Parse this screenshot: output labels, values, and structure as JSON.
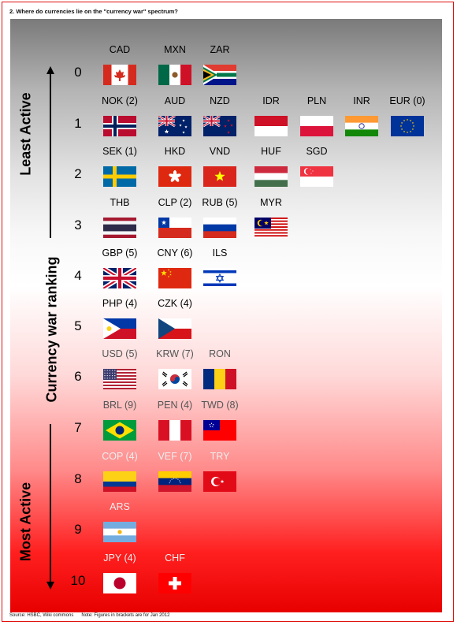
{
  "header": {
    "title": "2. Where do currencies lie on the \"currency war\" spectrum?"
  },
  "footer": {
    "source": "Source: HSBC, Wiki commons",
    "note": "Note: Figures in brackets are for Jan 2012"
  },
  "axis": {
    "label_top": "Least Active",
    "label_middle": "Currency war ranking",
    "label_bottom": "Most Active"
  },
  "rankings": [
    {
      "rank": "0",
      "currencies": [
        {
          "code": "CAD",
          "flag": "canada-flag"
        },
        {
          "code": "MXN",
          "flag": "mexico-flag"
        },
        {
          "code": "ZAR",
          "flag": "south-africa-flag"
        }
      ]
    },
    {
      "rank": "1",
      "currencies": [
        {
          "code": "NOK (2)",
          "flag": "norway-flag"
        },
        {
          "code": "AUD",
          "flag": "australia-flag"
        },
        {
          "code": "NZD",
          "flag": "new-zealand-flag"
        },
        {
          "code": "IDR",
          "flag": "indonesia-flag"
        },
        {
          "code": "PLN",
          "flag": "poland-flag"
        },
        {
          "code": "INR",
          "flag": "india-flag"
        },
        {
          "code": "EUR (0)",
          "flag": "eu-flag"
        }
      ]
    },
    {
      "rank": "2",
      "currencies": [
        {
          "code": "SEK (1)",
          "flag": "sweden-flag"
        },
        {
          "code": "HKD",
          "flag": "hong-kong-flag"
        },
        {
          "code": "VND",
          "flag": "vietnam-flag"
        },
        {
          "code": "HUF",
          "flag": "hungary-flag"
        },
        {
          "code": "SGD",
          "flag": "singapore-flag"
        }
      ]
    },
    {
      "rank": "3",
      "currencies": [
        {
          "code": "THB",
          "flag": "thailand-flag"
        },
        {
          "code": "CLP (2)",
          "flag": "chile-flag"
        },
        {
          "code": "RUB (5)",
          "flag": "russia-flag"
        },
        {
          "code": "MYR",
          "flag": "malaysia-flag"
        }
      ]
    },
    {
      "rank": "4",
      "currencies": [
        {
          "code": "GBP (5)",
          "flag": "uk-flag"
        },
        {
          "code": "CNY (6)",
          "flag": "china-flag"
        },
        {
          "code": "ILS",
          "flag": "israel-flag"
        }
      ]
    },
    {
      "rank": "5",
      "currencies": [
        {
          "code": "PHP (4)",
          "flag": "philippines-flag"
        },
        {
          "code": "CZK (4)",
          "flag": "czech-flag"
        }
      ]
    },
    {
      "rank": "6",
      "currencies": [
        {
          "code": "USD (5)",
          "flag": "usa-flag"
        },
        {
          "code": "KRW (7)",
          "flag": "south-korea-flag"
        },
        {
          "code": "RON",
          "flag": "romania-flag"
        }
      ]
    },
    {
      "rank": "7",
      "currencies": [
        {
          "code": "BRL (9)",
          "flag": "brazil-flag"
        },
        {
          "code": "PEN (4)",
          "flag": "peru-flag"
        },
        {
          "code": "TWD (8)",
          "flag": "taiwan-flag"
        }
      ]
    },
    {
      "rank": "8",
      "currencies": [
        {
          "code": "COP (4)",
          "flag": "colombia-flag"
        },
        {
          "code": "VEF (7)",
          "flag": "venezuela-flag"
        },
        {
          "code": "TRY",
          "flag": "turkey-flag"
        }
      ]
    },
    {
      "rank": "9",
      "currencies": [
        {
          "code": "ARS",
          "flag": "argentina-flag"
        }
      ]
    },
    {
      "rank": "10",
      "currencies": [
        {
          "code": "JPY (4)",
          "flag": "japan-flag"
        },
        {
          "code": "CHF",
          "flag": "switzerland-flag"
        }
      ]
    }
  ]
}
